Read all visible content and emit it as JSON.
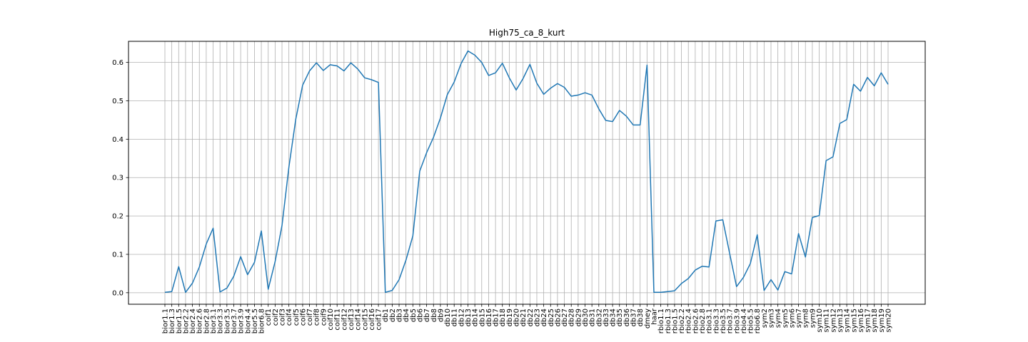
{
  "chart_data": {
    "type": "line",
    "title": "High75_ca_8_kurt",
    "xlabel": "",
    "ylabel": "",
    "grid": true,
    "color": "#1f77b4",
    "ylim": [
      -0.03,
      0.655
    ],
    "yticks": [
      0.0,
      0.1,
      0.2,
      0.3,
      0.4,
      0.5,
      0.6
    ],
    "ytick_labels": [
      "0.0",
      "0.1",
      "0.2",
      "0.3",
      "0.4",
      "0.5",
      "0.6"
    ],
    "categories": [
      "bior1.1",
      "bior1.3",
      "bior1.5",
      "bior2.2",
      "bior2.4",
      "bior2.6",
      "bior2.8",
      "bior3.1",
      "bior3.3",
      "bior3.5",
      "bior3.7",
      "bior3.9",
      "bior4.4",
      "bior5.5",
      "bior6.8",
      "coif1",
      "coif2",
      "coif3",
      "coif4",
      "coif5",
      "coif6",
      "coif7",
      "coif8",
      "coif9",
      "coif10",
      "coif11",
      "coif12",
      "coif13",
      "coif14",
      "coif15",
      "coif16",
      "coif17",
      "db1",
      "db2",
      "db3",
      "db4",
      "db5",
      "db6",
      "db7",
      "db8",
      "db9",
      "db10",
      "db11",
      "db12",
      "db13",
      "db14",
      "db15",
      "db16",
      "db17",
      "db18",
      "db19",
      "db20",
      "db21",
      "db22",
      "db23",
      "db24",
      "db25",
      "db26",
      "db27",
      "db28",
      "db29",
      "db30",
      "db31",
      "db32",
      "db33",
      "db34",
      "db35",
      "db36",
      "db37",
      "db38",
      "dmey",
      "haar",
      "rbio1.1",
      "rbio1.3",
      "rbio1.5",
      "rbio2.2",
      "rbio2.4",
      "rbio2.6",
      "rbio2.8",
      "rbio3.1",
      "rbio3.3",
      "rbio3.5",
      "rbio3.7",
      "rbio3.9",
      "rbio4.4",
      "rbio5.5",
      "rbio6.8",
      "sym2",
      "sym3",
      "sym4",
      "sym5",
      "sym6",
      "sym7",
      "sym8",
      "sym9",
      "sym10",
      "sym11",
      "sym12",
      "sym13",
      "sym14",
      "sym15",
      "sym16",
      "sym17",
      "sym18",
      "sym19",
      "sym20"
    ],
    "values": [
      0.001,
      0.003,
      0.068,
      0.001,
      0.025,
      0.067,
      0.127,
      0.168,
      0.002,
      0.012,
      0.043,
      0.094,
      0.047,
      0.079,
      0.161,
      0.009,
      0.081,
      0.175,
      0.327,
      0.452,
      0.541,
      0.578,
      0.599,
      0.579,
      0.594,
      0.591,
      0.578,
      0.599,
      0.583,
      0.56,
      0.555,
      0.548,
      0.001,
      0.006,
      0.034,
      0.085,
      0.148,
      0.317,
      0.365,
      0.405,
      0.455,
      0.516,
      0.549,
      0.597,
      0.63,
      0.619,
      0.6,
      0.566,
      0.573,
      0.598,
      0.56,
      0.528,
      0.558,
      0.595,
      0.546,
      0.517,
      0.533,
      0.545,
      0.535,
      0.512,
      0.515,
      0.521,
      0.515,
      0.479,
      0.449,
      0.446,
      0.475,
      0.46,
      0.437,
      0.437,
      0.593,
      0.001,
      0.001,
      0.003,
      0.005,
      0.024,
      0.037,
      0.059,
      0.069,
      0.067,
      0.187,
      0.19,
      0.102,
      0.016,
      0.04,
      0.076,
      0.151,
      0.006,
      0.034,
      0.007,
      0.055,
      0.049,
      0.154,
      0.093,
      0.196,
      0.201,
      0.344,
      0.354,
      0.441,
      0.451,
      0.543,
      0.525,
      0.561,
      0.539,
      0.573,
      0.543
    ]
  }
}
